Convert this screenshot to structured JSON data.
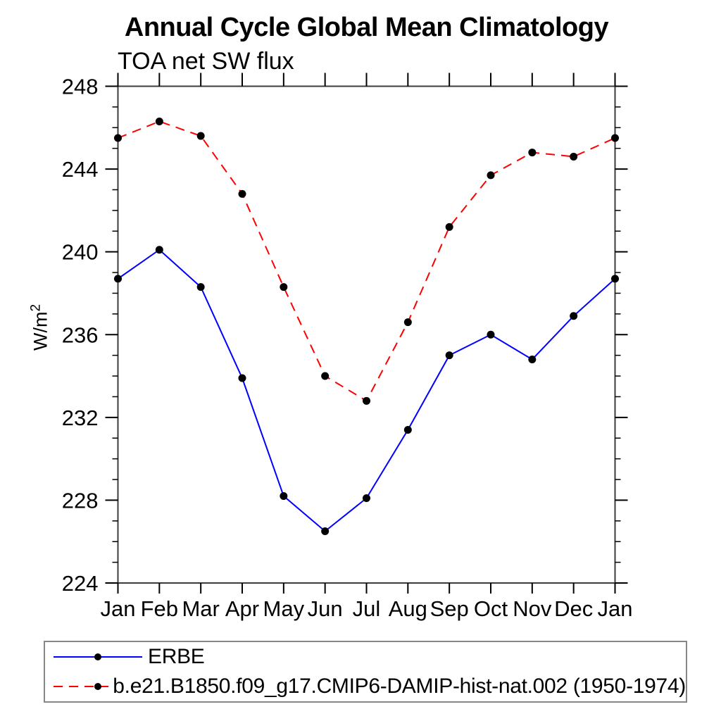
{
  "chart_data": {
    "type": "line",
    "title": "Annual Cycle Global Mean Climatology",
    "subtitle": "TOA net SW flux",
    "ylabel": "W/m",
    "ylabel_superscript": "2",
    "x_categories": [
      "Jan",
      "Feb",
      "Mar",
      "Apr",
      "May",
      "Jun",
      "Jul",
      "Aug",
      "Sep",
      "Oct",
      "Nov",
      "Dec",
      "Jan"
    ],
    "ylim": [
      224,
      248
    ],
    "y_major_ticks": [
      224,
      228,
      232,
      236,
      240,
      244,
      248
    ],
    "y_minor_tick_step": 1,
    "grid": "off",
    "legend_position": "bottom-left-box",
    "frame_color": "#3c3c3c",
    "tick_color": "#000000",
    "series": [
      {
        "name": "ERBE",
        "color": "#0000ff",
        "line_style": "solid",
        "marker": "filled-circle",
        "marker_color": "#000000",
        "values": [
          238.7,
          240.1,
          238.3,
          233.9,
          228.2,
          226.5,
          228.1,
          231.4,
          235.0,
          236.0,
          234.8,
          236.9,
          238.7
        ]
      },
      {
        "name": "b.e21.B1850.f09_g17.CMIP6-DAMIP-hist-nat.002 (1950-1974)",
        "color": "#ff0000",
        "line_style": "dashed",
        "marker": "filled-circle",
        "marker_color": "#000000",
        "values": [
          245.5,
          246.3,
          245.6,
          242.8,
          238.3,
          234.0,
          232.8,
          236.6,
          241.2,
          243.7,
          244.8,
          244.6,
          245.5
        ]
      }
    ]
  }
}
